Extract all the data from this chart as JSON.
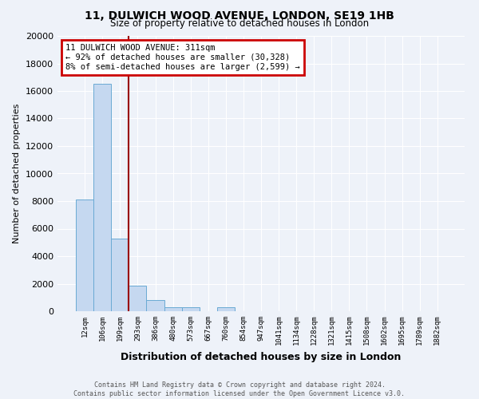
{
  "title1": "11, DULWICH WOOD AVENUE, LONDON, SE19 1HB",
  "title2": "Size of property relative to detached houses in London",
  "xlabel": "Distribution of detached houses by size in London",
  "ylabel": "Number of detached properties",
  "bin_labels": [
    "12sqm",
    "106sqm",
    "199sqm",
    "293sqm",
    "386sqm",
    "480sqm",
    "573sqm",
    "667sqm",
    "760sqm",
    "854sqm",
    "947sqm",
    "1041sqm",
    "1134sqm",
    "1228sqm",
    "1321sqm",
    "1415sqm",
    "1508sqm",
    "1602sqm",
    "1695sqm",
    "1789sqm",
    "1882sqm"
  ],
  "bar_heights": [
    8100,
    16500,
    5300,
    1850,
    800,
    300,
    270,
    0,
    270,
    0,
    0,
    0,
    0,
    0,
    0,
    0,
    0,
    0,
    0,
    0,
    0
  ],
  "bar_color": "#c5d8f0",
  "bar_edge_color": "#6aaad4",
  "vline_color": "#990000",
  "vline_x_index": 2.5,
  "annotation_title": "11 DULWICH WOOD AVENUE: 311sqm",
  "annotation_line1": "← 92% of detached houses are smaller (30,328)",
  "annotation_line2": "8% of semi-detached houses are larger (2,599) →",
  "annotation_box_facecolor": "#ffffff",
  "annotation_box_edgecolor": "#cc0000",
  "ylim": [
    0,
    20000
  ],
  "yticks": [
    0,
    2000,
    4000,
    6000,
    8000,
    10000,
    12000,
    14000,
    16000,
    18000,
    20000
  ],
  "footer1": "Contains HM Land Registry data © Crown copyright and database right 2024.",
  "footer2": "Contains public sector information licensed under the Open Government Licence v3.0.",
  "bg_color": "#eef2f9",
  "grid_color": "#ffffff",
  "title1_fontsize": 10,
  "title2_fontsize": 8.5,
  "ylabel_fontsize": 8,
  "xlabel_fontsize": 9
}
